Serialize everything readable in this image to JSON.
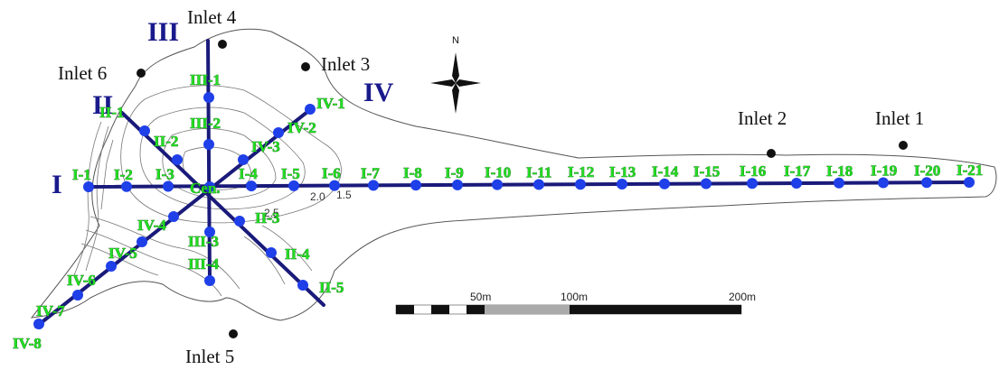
{
  "inlets": [
    "Inlet 1",
    "Inlet 2",
    "Inlet 3",
    "Inlet 4",
    "Inlet 5",
    "Inlet 6"
  ],
  "lines": [
    "I",
    "II",
    "III",
    "IV"
  ],
  "compass": "N",
  "center_label": "Cen.",
  "points": {
    "line1": [
      "I-1",
      "I-2",
      "I-3",
      "I-4",
      "I-5",
      "I-6",
      "I-7",
      "I-8",
      "I-9",
      "I-10",
      "I-11",
      "I-12",
      "I-13",
      "I-14",
      "I-15",
      "I-16",
      "I-17",
      "I-18",
      "I-19",
      "I-20",
      "I-21"
    ],
    "line2": [
      "II-1",
      "II-2",
      "II-3",
      "II-4",
      "II-5"
    ],
    "line3": [
      "III-1",
      "III-2",
      "III-3",
      "III-4"
    ],
    "line4": [
      "IV-1",
      "IV-2",
      "IV-3",
      "IV-4",
      "IV-5",
      "IV-6",
      "IV-7",
      "IV-8"
    ]
  },
  "contour_labels": [
    "2.0",
    "1.5",
    "2.5"
  ],
  "scale_bar": [
    "50m",
    "100m",
    "200m"
  ],
  "colors": {
    "line": "#1a1a7a",
    "point": "#1f3fe8",
    "label": "#22dd22"
  }
}
